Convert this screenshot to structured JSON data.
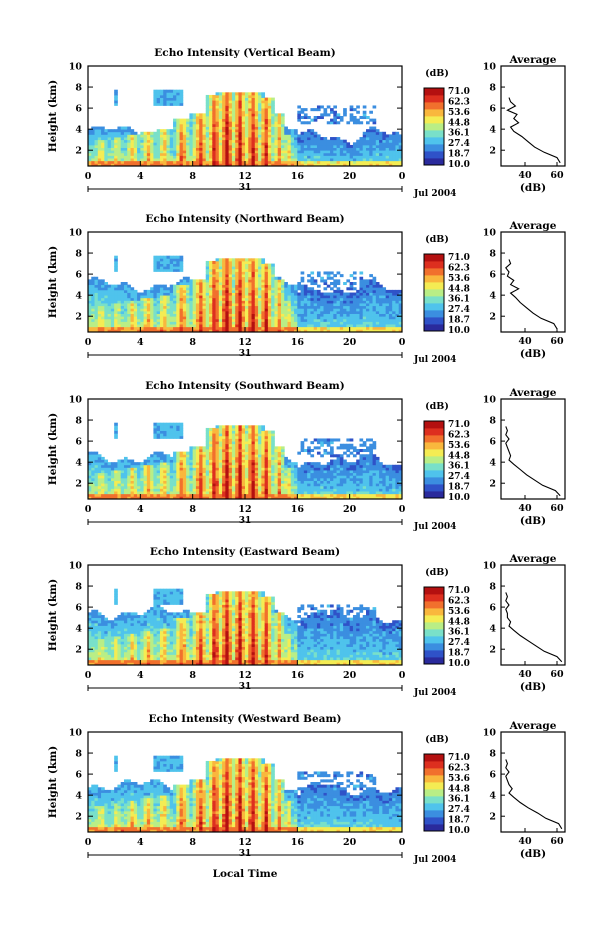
{
  "colors": {
    "scale": [
      "#2a2a9c",
      "#2f52c8",
      "#3b8ee0",
      "#4fc3ec",
      "#79e0c9",
      "#b9ee86",
      "#f4ec53",
      "#f9b73d",
      "#f1702d",
      "#dd2f1f",
      "#b41010"
    ]
  },
  "xaxis": {
    "ticks": [
      "0",
      "4",
      "8",
      "12",
      "16",
      "20",
      "0"
    ],
    "day": "31",
    "date": "Jul 2004",
    "label": "Local Time"
  },
  "colorbar": {
    "unit": "(dB)",
    "labels": [
      "71.0",
      "62.3",
      "53.6",
      "44.8",
      "36.1",
      "27.4",
      "18.7",
      "10.0"
    ]
  },
  "chart_data": [
    {
      "type": "heatmap",
      "title": "Echo Intensity (Vertical Beam)",
      "ylabel": "Height (km)",
      "yticks": [
        "2",
        "4",
        "6",
        "8",
        "10"
      ],
      "xlim": [
        0,
        24
      ],
      "ylim": [
        0.5,
        10
      ],
      "zlim": [
        10.0,
        71.0
      ],
      "base_top_km": 3.8,
      "profile": {
        "title": "Average",
        "xlabel": "(dB)",
        "xticks": [
          "40",
          "60"
        ],
        "xlim": [
          25,
          65
        ],
        "height_km": [
          0.8,
          1.3,
          1.8,
          2.3,
          2.8,
          3.3,
          3.8,
          4.2,
          4.6,
          5.0,
          5.4,
          5.8,
          6.2,
          6.6,
          7.0
        ],
        "db": [
          62,
          60,
          52,
          46,
          42,
          38,
          33,
          31,
          36,
          33,
          35,
          29,
          34,
          31,
          30
        ]
      }
    },
    {
      "type": "heatmap",
      "title": "Echo Intensity (Northward Beam)",
      "ylabel": "Height (km)",
      "yticks": [
        "2",
        "4",
        "6",
        "8",
        "10"
      ],
      "xlim": [
        0,
        24
      ],
      "ylim": [
        0.5,
        10
      ],
      "zlim": [
        10.0,
        71.0
      ],
      "base_top_km": 5.0,
      "profile": {
        "title": "Average",
        "xlabel": "(dB)",
        "xticks": [
          "40",
          "60"
        ],
        "xlim": [
          25,
          65
        ],
        "height_km": [
          0.8,
          1.3,
          1.8,
          2.3,
          2.8,
          3.3,
          3.8,
          4.2,
          4.6,
          5.0,
          5.4,
          5.8,
          6.2,
          6.6,
          7.0,
          7.4
        ],
        "db": [
          60,
          58,
          50,
          45,
          41,
          37,
          34,
          31,
          36,
          31,
          33,
          29,
          30,
          28,
          31,
          30
        ]
      }
    },
    {
      "type": "heatmap",
      "title": "Echo Intensity (Southward Beam)",
      "ylabel": "Height (km)",
      "yticks": [
        "2",
        "4",
        "6",
        "8",
        "10"
      ],
      "xlim": [
        0,
        24
      ],
      "ylim": [
        0.5,
        10
      ],
      "zlim": [
        10.0,
        71.0
      ],
      "base_top_km": 4.5,
      "profile": {
        "title": "Average",
        "xlabel": "(dB)",
        "xticks": [
          "40",
          "60"
        ],
        "xlim": [
          25,
          65
        ],
        "height_km": [
          0.8,
          1.3,
          1.8,
          2.3,
          2.8,
          3.3,
          3.8,
          4.2,
          4.6,
          5.0,
          5.4,
          5.8,
          6.2,
          6.6,
          7.0,
          7.4
        ],
        "db": [
          62,
          59,
          51,
          46,
          41,
          37,
          33,
          30,
          31,
          30,
          29,
          28,
          30,
          28,
          29,
          28
        ]
      }
    },
    {
      "type": "heatmap",
      "title": "Echo Intensity (Eastward Beam)",
      "ylabel": "Height (km)",
      "yticks": [
        "2",
        "4",
        "6",
        "8",
        "10"
      ],
      "xlim": [
        0,
        24
      ],
      "ylim": [
        0.5,
        10
      ],
      "zlim": [
        10.0,
        71.0
      ],
      "base_top_km": 5.5,
      "profile": {
        "title": "Average",
        "xlabel": "(dB)",
        "xticks": [
          "40",
          "60"
        ],
        "xlim": [
          25,
          65
        ],
        "height_km": [
          0.8,
          1.3,
          1.8,
          2.3,
          2.8,
          3.3,
          3.8,
          4.2,
          4.6,
          5.0,
          5.4,
          5.8,
          6.2,
          6.6,
          7.0,
          7.4
        ],
        "db": [
          63,
          60,
          52,
          47,
          42,
          37,
          33,
          30,
          31,
          29,
          29,
          28,
          30,
          28,
          29,
          28
        ]
      }
    },
    {
      "type": "heatmap",
      "title": "Echo Intensity (Westward Beam)",
      "ylabel": "Height (km)",
      "yticks": [
        "2",
        "4",
        "6",
        "8",
        "10"
      ],
      "xlim": [
        0,
        24
      ],
      "ylim": [
        0.5,
        10
      ],
      "zlim": [
        10.0,
        71.0
      ],
      "base_top_km": 5.0,
      "profile": {
        "title": "Average",
        "xlabel": "(dB)",
        "xticks": [
          "40",
          "60"
        ],
        "xlim": [
          25,
          65
        ],
        "height_km": [
          0.8,
          1.3,
          1.8,
          2.3,
          2.8,
          3.3,
          3.8,
          4.2,
          4.6,
          5.0,
          5.4,
          5.8,
          6.2,
          6.6,
          7.0,
          7.4
        ],
        "db": [
          63,
          61,
          53,
          48,
          42,
          37,
          33,
          30,
          32,
          30,
          29,
          28,
          30,
          28,
          29,
          28
        ]
      }
    }
  ]
}
